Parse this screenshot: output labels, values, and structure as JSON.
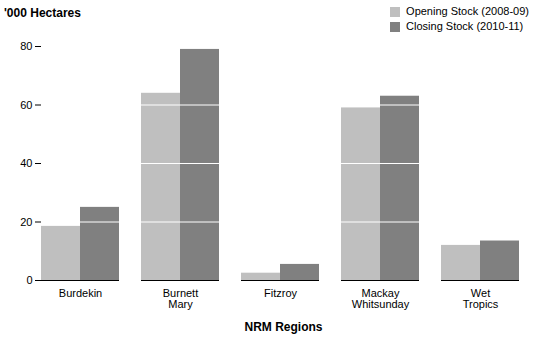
{
  "chart_data": {
    "type": "bar",
    "y_label": "'000 Hectares",
    "x_label": "NRM Regions",
    "categories": [
      "Burdekin",
      "Burnett Mary",
      "Fitzroy",
      "Mackay Whitsunday",
      "Wet Tropics"
    ],
    "series": [
      {
        "name": "Opening Stock (2008-09)",
        "color": "#bfbfbf",
        "values": [
          18.5,
          64,
          2.5,
          59,
          12
        ]
      },
      {
        "name": "Closing Stock (2010-11)",
        "color": "#808080",
        "values": [
          25,
          79,
          5.5,
          63,
          13.5
        ]
      }
    ],
    "ylim": [
      0,
      80
    ],
    "yticks": [
      0,
      20,
      40,
      60,
      80
    ],
    "grid": true,
    "legend": "top-right"
  }
}
